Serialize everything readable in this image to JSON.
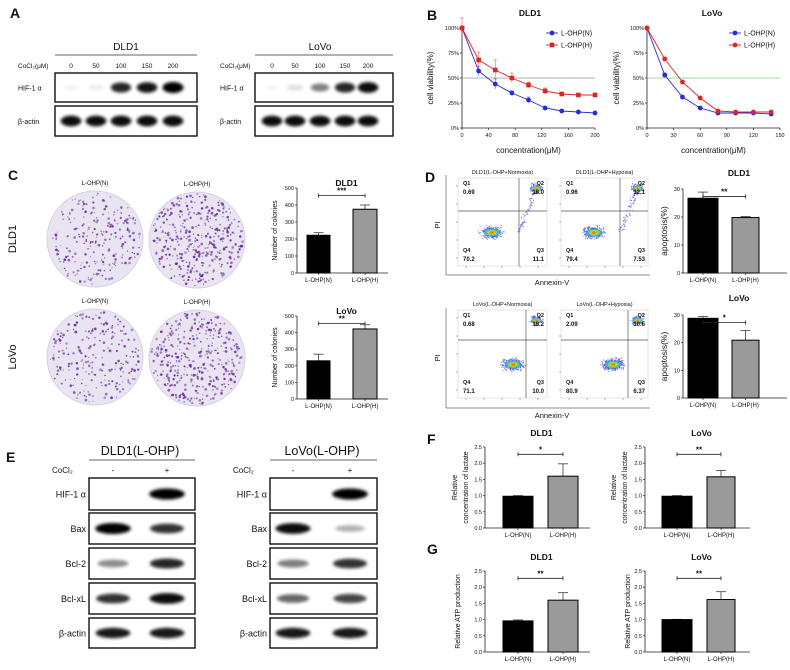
{
  "panel_letters": [
    "A",
    "B",
    "C",
    "D",
    "E",
    "F",
    "G"
  ],
  "panel_a": {
    "blots": [
      {
        "cell": "DLD1",
        "treatment_label": "CoCl₂(μM)",
        "doses": [
          "0",
          "50",
          "100",
          "150",
          "200"
        ],
        "rows": [
          {
            "label": "HIF-1 α",
            "band_intensity": [
              0.05,
              0.08,
              0.85,
              0.92,
              1.0
            ]
          },
          {
            "label": "β-actin",
            "band_intensity": [
              0.95,
              0.95,
              0.95,
              0.95,
              0.95
            ]
          }
        ]
      },
      {
        "cell": "LoVo",
        "treatment_label": "CoCl₂(μM)",
        "doses": [
          "0",
          "50",
          "100",
          "150",
          "200"
        ],
        "rows": [
          {
            "label": "HIF-1 α",
            "band_intensity": [
              0.03,
              0.12,
              0.5,
              0.85,
              0.95
            ]
          },
          {
            "label": "β-actin",
            "band_intensity": [
              0.95,
              0.95,
              0.95,
              0.95,
              0.95
            ]
          }
        ]
      }
    ]
  },
  "panel_c": {
    "plates": [
      {
        "cell": "DLD1",
        "conditions": [
          "L-OHP(N)",
          "L-OHP(H)"
        ]
      },
      {
        "cell": "LoVo",
        "conditions": [
          "L-OHP(N)",
          "L-OHP(H)"
        ]
      }
    ]
  },
  "panel_d": {
    "x_axis_label": "Annexin-V",
    "y_axis_label": "PI",
    "flow_plots": [
      {
        "title": "DLD1(L-OHP+Normoxia)",
        "quadrants": {
          "Q1": "0.69",
          "Q2": "18.0",
          "Q3": "11.1",
          "Q4": "70.2"
        }
      },
      {
        "title": "DLD1(L-OHP+Hypoxia)",
        "quadrants": {
          "Q1": "0.96",
          "Q2": "12.1",
          "Q3": "7.53",
          "Q4": "79.4"
        }
      },
      {
        "title": "LoVo(L-OHP+Normoxia)",
        "quadrants": {
          "Q1": "0.68",
          "Q2": "18.2",
          "Q3": "10.0",
          "Q4": "71.1"
        }
      },
      {
        "title": "LoVo(L-OHP+Hypoxia)",
        "quadrants": {
          "Q1": "2.09",
          "Q2": "10.6",
          "Q3": "6.37",
          "Q4": "80.9"
        }
      }
    ]
  },
  "panel_e": {
    "blots": [
      {
        "title": "DLD1(L-OHP)",
        "treatment_label": "CoCl₂",
        "conditions": [
          "-",
          "+"
        ],
        "rows": [
          {
            "label": "HIF-1 α",
            "band_intensity": [
              0.0,
              1.0
            ]
          },
          {
            "label": "Bax",
            "band_intensity": [
              1.0,
              0.8
            ]
          },
          {
            "label": "Bcl-2",
            "band_intensity": [
              0.45,
              0.85
            ]
          },
          {
            "label": "Bcl-xL",
            "band_intensity": [
              0.8,
              0.95
            ]
          },
          {
            "label": "β-actin",
            "band_intensity": [
              0.9,
              0.9
            ]
          }
        ]
      },
      {
        "title": "LoVo(L-OHP)",
        "treatment_label": "CoCl₂",
        "conditions": [
          "-",
          "+"
        ],
        "rows": [
          {
            "label": "HIF-1 α",
            "band_intensity": [
              0.0,
              1.0
            ]
          },
          {
            "label": "Bax",
            "band_intensity": [
              0.95,
              0.3
            ]
          },
          {
            "label": "Bcl-2",
            "band_intensity": [
              0.5,
              0.8
            ]
          },
          {
            "label": "Bcl-xL",
            "band_intensity": [
              0.6,
              0.72
            ]
          },
          {
            "label": "β-actin",
            "band_intensity": [
              0.9,
              0.9
            ]
          }
        ]
      }
    ]
  },
  "chart_data": [
    {
      "id": "B-DLD1",
      "type": "line",
      "title": "DLD1",
      "xlabel": "concentration(μM)",
      "ylabel": "cell viability(%)",
      "xlim": [
        0,
        200
      ],
      "xticks": [
        "0",
        "40",
        "80",
        "120",
        "160",
        "200"
      ],
      "ylim": [
        0,
        100
      ],
      "yticks": [
        "0%",
        "25%",
        "50%",
        "75%",
        "100%"
      ],
      "reference_line": 50,
      "reference_color": "#999999",
      "x": [
        0,
        25,
        50,
        75,
        100,
        125,
        150,
        175,
        200
      ],
      "series": [
        {
          "name": "L-OHP(N)",
          "color": "#2a2ad6",
          "marker": "circle",
          "values": [
            100,
            57,
            44,
            35,
            28,
            20,
            17,
            16,
            15
          ],
          "errors": [
            0,
            5,
            5,
            2,
            3,
            1,
            1,
            1,
            1
          ]
        },
        {
          "name": "L-OHP(H)",
          "color": "#e02424",
          "marker": "square",
          "values": [
            100,
            68,
            58,
            50,
            43,
            37,
            34,
            33,
            33
          ],
          "errors": [
            10,
            8,
            10,
            5,
            3,
            3,
            1,
            1,
            2
          ]
        }
      ],
      "legend": "top-right"
    },
    {
      "id": "B-LoVo",
      "type": "line",
      "title": "LoVo",
      "xlabel": "concentration(μM)",
      "ylabel": "cell viability(%)",
      "xlim": [
        0,
        150
      ],
      "xticks": [
        "0",
        "30",
        "60",
        "90",
        "120",
        "150"
      ],
      "ylim": [
        0,
        100
      ],
      "yticks": [
        "0%",
        "25%",
        "50%",
        "75%",
        "100%"
      ],
      "reference_line": 50,
      "reference_color": "#7ccf7c",
      "x": [
        0,
        20,
        40,
        60,
        80,
        100,
        120,
        140
      ],
      "series": [
        {
          "name": "L-OHP(N)",
          "color": "#2a2ad6",
          "marker": "circle",
          "values": [
            100,
            53,
            31,
            20,
            15,
            15,
            15,
            14
          ],
          "errors": [
            0,
            2,
            1,
            1,
            1,
            1,
            1,
            1
          ]
        },
        {
          "name": "L-OHP(H)",
          "color": "#e02424",
          "marker": "circle",
          "values": [
            100,
            69,
            46,
            30,
            17,
            16,
            16,
            16
          ],
          "errors": [
            0,
            2,
            1,
            1,
            1,
            1,
            1,
            1
          ]
        }
      ],
      "legend": "top-right"
    },
    {
      "id": "C-DLD1",
      "type": "bar",
      "title": "DLD1",
      "ylabel": [
        "Number of colonies"
      ],
      "categories": [
        "L-OHP(N)",
        "L-OHP(H)"
      ],
      "values": [
        222,
        375
      ],
      "errors": [
        15,
        25
      ],
      "significance": "***",
      "ylim": [
        0,
        500
      ],
      "yticks": [
        "0",
        "100",
        "200",
        "300",
        "400",
        "500"
      ]
    },
    {
      "id": "C-LoVo",
      "type": "bar",
      "title": "LoVo",
      "ylabel": [
        "Number of colonies"
      ],
      "categories": [
        "L-OHP(N)",
        "L-OHP(H)"
      ],
      "values": [
        230,
        422
      ],
      "errors": [
        40,
        25
      ],
      "significance": "**",
      "ylim": [
        0,
        500
      ],
      "yticks": [
        "0",
        "100",
        "200",
        "300",
        "400",
        "500"
      ]
    },
    {
      "id": "D-DLD1",
      "type": "bar",
      "title": "DLD1",
      "ylabel": [
        "apoptosis(%)"
      ],
      "categories": [
        "L-OHP(N)",
        "L-OHP(H)"
      ],
      "values": [
        26.7,
        19.8
      ],
      "errors": [
        2.2,
        0.4
      ],
      "significance": "**",
      "ylim": [
        0,
        30
      ],
      "yticks": [
        "0",
        "10",
        "20",
        "30"
      ]
    },
    {
      "id": "D-LoVo",
      "type": "bar",
      "title": "LoVo",
      "ylabel": [
        "apoptosis(%)"
      ],
      "categories": [
        "L-OHP(N)",
        "L-OHP(H)"
      ],
      "values": [
        28.8,
        20.9
      ],
      "errors": [
        0.6,
        3.5
      ],
      "significance": "*",
      "ylim": [
        0,
        30
      ],
      "yticks": [
        "0",
        "10",
        "20",
        "30"
      ]
    },
    {
      "id": "F-DLD1",
      "type": "bar",
      "title": "DLD1",
      "ylabel": [
        "Relative",
        "concentration of lactate"
      ],
      "categories": [
        "L-OHP(N)",
        "L-OHP(H)"
      ],
      "values": [
        0.98,
        1.6
      ],
      "errors": [
        0.02,
        0.38
      ],
      "significance": "*",
      "ylim": [
        0,
        2.5
      ],
      "yticks": [
        "0.0",
        "0.5",
        "1.0",
        "1.5",
        "2.0",
        "2.5"
      ]
    },
    {
      "id": "F-LoVo",
      "type": "bar",
      "title": "LoVo",
      "ylabel": [
        "Relative",
        "concentration of lactate"
      ],
      "categories": [
        "L-OHP(N)",
        "L-OHP(H)"
      ],
      "values": [
        0.98,
        1.58
      ],
      "errors": [
        0.02,
        0.2
      ],
      "significance": "**",
      "ylim": [
        0,
        2.5
      ],
      "yticks": [
        "0.0",
        "0.5",
        "1.0",
        "1.5",
        "2.0",
        "2.5"
      ]
    },
    {
      "id": "G-DLD1",
      "type": "bar",
      "title": "DLD1",
      "ylabel": [
        "Relative ATP production"
      ],
      "categories": [
        "L-OHP(N)",
        "L-OHP(H)"
      ],
      "values": [
        0.96,
        1.6
      ],
      "errors": [
        0.03,
        0.23
      ],
      "significance": "**",
      "ylim": [
        0,
        2.5
      ],
      "yticks": [
        "0.0",
        "0.5",
        "1.0",
        "1.5",
        "2.0",
        "2.5"
      ]
    },
    {
      "id": "G-LoVo",
      "type": "bar",
      "title": "LoVo",
      "ylabel": [
        "Relative ATP production"
      ],
      "categories": [
        "L-OHP(N)",
        "L-OHP(H)"
      ],
      "values": [
        1.0,
        1.62
      ],
      "errors": [
        0.01,
        0.24
      ],
      "significance": "**",
      "ylim": [
        0,
        2.5
      ],
      "yticks": [
        "0.0",
        "0.5",
        "1.0",
        "1.5",
        "2.0",
        "2.5"
      ]
    }
  ],
  "colors": {
    "bar_normoxia": "#000000",
    "bar_hypoxia": "#9a9a9a",
    "colony_stain": "#6a2a9a",
    "plate_background": "#e9e4f1"
  }
}
